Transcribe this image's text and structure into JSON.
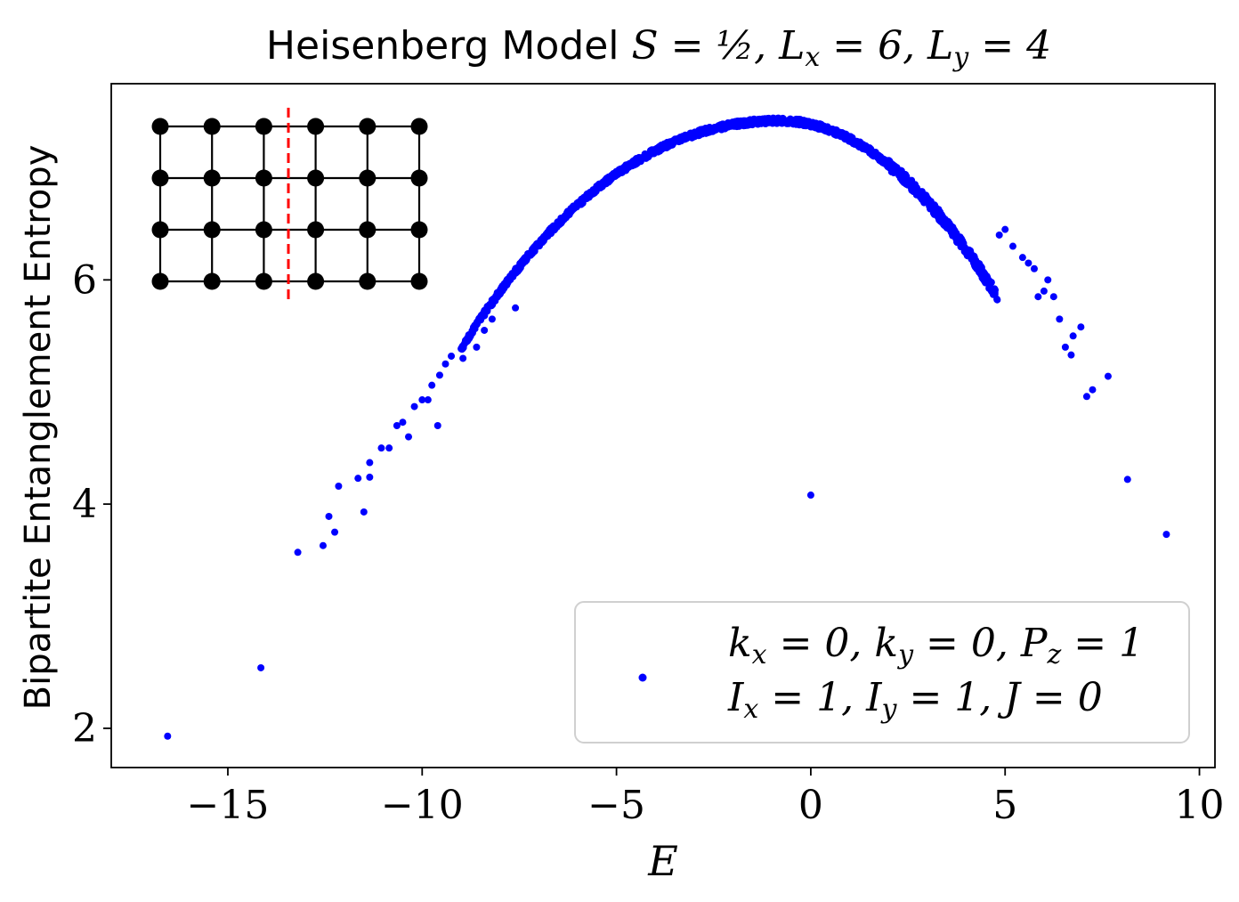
{
  "chart_data": {
    "type": "scatter",
    "title_text": "Heisenberg Model ",
    "title_math": "S = ½, L",
    "title_sub_x": "x",
    "title_mid": " = 6, L",
    "title_sub_y": "y",
    "title_end": " = 4",
    "xlabel": "E",
    "ylabel": "Bipartite Entanglement Entropy",
    "xlim": [
      -18,
      10.4
    ],
    "ylim": [
      1.65,
      7.75
    ],
    "xticks": [
      -15,
      -10,
      -5,
      0,
      5,
      10
    ],
    "xtick_labels": [
      "−15",
      "−10",
      "−5",
      "0",
      "5",
      "10"
    ],
    "yticks": [
      2,
      4,
      6
    ],
    "ytick_labels": [
      "2",
      "4",
      "6"
    ],
    "grid": false,
    "legend_position": "lower-right",
    "legend": {
      "line1": "k_x = 0, k_y = 0, P_z = 1",
      "line2": "I_x = 1, I_y = 1, J = 0"
    },
    "marker_color": "#0000ff",
    "inset": {
      "description_lattice_cols": 6,
      "description_lattice_rows": 4,
      "cut_color": "#ff0000"
    },
    "isolated_points": [
      {
        "x": -16.55,
        "y": 1.93
      },
      {
        "x": -14.15,
        "y": 2.54
      },
      {
        "x": -13.2,
        "y": 3.57
      },
      {
        "x": -12.55,
        "y": 3.63
      },
      {
        "x": -12.4,
        "y": 3.89
      },
      {
        "x": -12.25,
        "y": 3.75
      },
      {
        "x": -12.15,
        "y": 4.16
      },
      {
        "x": -11.65,
        "y": 4.23
      },
      {
        "x": -11.5,
        "y": 3.93
      },
      {
        "x": -11.35,
        "y": 4.24
      },
      {
        "x": -11.35,
        "y": 4.37
      },
      {
        "x": -11.05,
        "y": 4.5
      },
      {
        "x": -10.85,
        "y": 4.5
      },
      {
        "x": -10.65,
        "y": 4.7
      },
      {
        "x": -10.5,
        "y": 4.73
      },
      {
        "x": -10.35,
        "y": 4.6
      },
      {
        "x": -10.2,
        "y": 4.87
      },
      {
        "x": -10.0,
        "y": 4.93
      },
      {
        "x": -9.85,
        "y": 4.93
      },
      {
        "x": -9.75,
        "y": 5.06
      },
      {
        "x": -9.6,
        "y": 4.7
      },
      {
        "x": -9.55,
        "y": 5.15
      },
      {
        "x": -9.4,
        "y": 5.25
      },
      {
        "x": -9.25,
        "y": 5.32
      },
      {
        "x": -8.95,
        "y": 5.3
      },
      {
        "x": -8.85,
        "y": 5.45
      },
      {
        "x": -8.6,
        "y": 5.4
      },
      {
        "x": -8.4,
        "y": 5.55
      },
      {
        "x": -8.2,
        "y": 5.65
      },
      {
        "x": -7.6,
        "y": 5.75
      },
      {
        "x": 0.0,
        "y": 4.08
      },
      {
        "x": 4.85,
        "y": 6.4
      },
      {
        "x": 5.0,
        "y": 6.45
      },
      {
        "x": 5.2,
        "y": 6.3
      },
      {
        "x": 5.45,
        "y": 6.2
      },
      {
        "x": 5.6,
        "y": 6.15
      },
      {
        "x": 5.75,
        "y": 6.1
      },
      {
        "x": 5.85,
        "y": 5.85
      },
      {
        "x": 6.0,
        "y": 5.9
      },
      {
        "x": 6.1,
        "y": 6.0
      },
      {
        "x": 6.25,
        "y": 5.85
      },
      {
        "x": 6.4,
        "y": 5.65
      },
      {
        "x": 6.55,
        "y": 5.4
      },
      {
        "x": 6.7,
        "y": 5.33
      },
      {
        "x": 6.75,
        "y": 5.5
      },
      {
        "x": 6.95,
        "y": 5.58
      },
      {
        "x": 7.1,
        "y": 4.96
      },
      {
        "x": 7.25,
        "y": 5.02
      },
      {
        "x": 7.65,
        "y": 5.14
      },
      {
        "x": 8.15,
        "y": 4.22
      },
      {
        "x": 9.15,
        "y": 3.73
      }
    ],
    "curve": {
      "description": "dense band of points following parabola",
      "peak_x": -0.8,
      "peak_y": 7.42,
      "x_range": [
        -9.0,
        4.8
      ],
      "curvature_left": 0.0235,
      "curvature_right": 0.05,
      "point_count": 1400
    }
  }
}
